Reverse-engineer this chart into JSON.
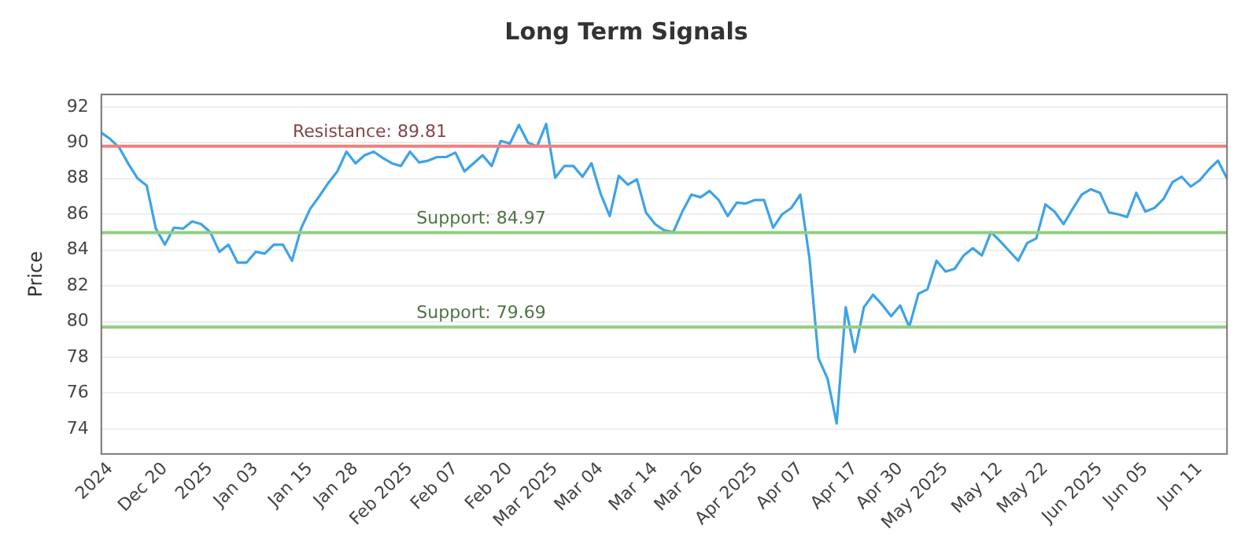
{
  "chart_data": {
    "type": "line",
    "title": "Long Term Signals",
    "ylabel": "Price",
    "categories": [
      null,
      "2024",
      null,
      null,
      null,
      null,
      null,
      "Dec 20",
      null,
      null,
      null,
      null,
      "2025",
      null,
      null,
      null,
      null,
      "Jan 03",
      null,
      null,
      null,
      null,
      null,
      "Jan 15",
      null,
      null,
      null,
      null,
      "Jan 28",
      null,
      null,
      null,
      null,
      null,
      "Feb 2025",
      null,
      null,
      null,
      null,
      "Feb 07",
      null,
      null,
      null,
      null,
      null,
      "Feb 20",
      null,
      null,
      null,
      null,
      "Mar 2025",
      null,
      null,
      null,
      null,
      "Mar 04",
      null,
      null,
      null,
      null,
      null,
      "Mar 14",
      null,
      null,
      null,
      null,
      "Mar 26",
      null,
      null,
      null,
      null,
      null,
      "Apr 2025",
      null,
      null,
      null,
      null,
      "Apr 07",
      null,
      null,
      null,
      null,
      null,
      "Apr 17",
      null,
      null,
      null,
      null,
      "Apr 30",
      null,
      null,
      null,
      null,
      "May 2025",
      null,
      null,
      null,
      null,
      null,
      "May 12",
      null,
      null,
      null,
      null,
      "May 22",
      null,
      null,
      null,
      null,
      null,
      "Jun 2025",
      null,
      null,
      null,
      null,
      "Jun 05",
      null,
      null,
      null,
      null,
      null,
      "Jun 11",
      null,
      null,
      null
    ],
    "series": [
      {
        "color": "#3ea3e6",
        "values": [
          90.56,
          90.2,
          89.7,
          88.8,
          88.0,
          87.6,
          85.2,
          84.3,
          85.25,
          85.2,
          85.6,
          85.45,
          85.0,
          83.9,
          84.3,
          83.3,
          83.3,
          83.9,
          83.8,
          84.3,
          84.3,
          83.4,
          85.2,
          86.3,
          87.0,
          87.75,
          88.4,
          89.5,
          88.85,
          89.3,
          89.5,
          89.15,
          88.85,
          88.7,
          89.5,
          88.9,
          89.0,
          89.2,
          89.2,
          89.45,
          88.4,
          88.85,
          89.3,
          88.7,
          90.1,
          89.95,
          91.0,
          90.0,
          89.8,
          91.05,
          88.05,
          88.7,
          88.7,
          88.1,
          88.85,
          87.15,
          85.9,
          88.15,
          87.65,
          87.95,
          86.1,
          85.45,
          85.1,
          85.0,
          86.15,
          87.1,
          86.95,
          87.3,
          86.8,
          85.9,
          86.65,
          86.6,
          86.8,
          86.8,
          85.25,
          86.0,
          86.35,
          87.1,
          83.55,
          77.95,
          76.8,
          74.3,
          80.8,
          78.3,
          80.8,
          81.5,
          80.95,
          80.3,
          80.9,
          79.7,
          81.55,
          81.8,
          83.4,
          82.8,
          82.95,
          83.7,
          84.1,
          83.7,
          85.0,
          84.5,
          83.95,
          83.4,
          84.4,
          84.65,
          86.55,
          86.15,
          85.45,
          86.3,
          87.1,
          87.4,
          87.2,
          86.1,
          86.0,
          85.85,
          87.2,
          86.15,
          86.35,
          86.85,
          87.8,
          88.1,
          87.55,
          87.9,
          88.5,
          89.0,
          88.0
        ]
      }
    ],
    "ylim": [
      72.6,
      92.7
    ],
    "yticks": [
      74,
      76,
      78,
      80,
      82,
      84,
      86,
      88,
      90,
      92
    ],
    "grid": "y",
    "legend": false,
    "marker": "none",
    "line_style": "solid",
    "ref_lines": [
      {
        "axis": "y",
        "value": 89.81,
        "label": "Resistance: 89.81",
        "color": "#f08080"
      },
      {
        "axis": "y",
        "value": 84.97,
        "label": "Support: 84.97",
        "color": "#8fcf80"
      },
      {
        "axis": "y",
        "value": 79.69,
        "label": "Support: 79.69",
        "color": "#8fcf80"
      }
    ]
  }
}
